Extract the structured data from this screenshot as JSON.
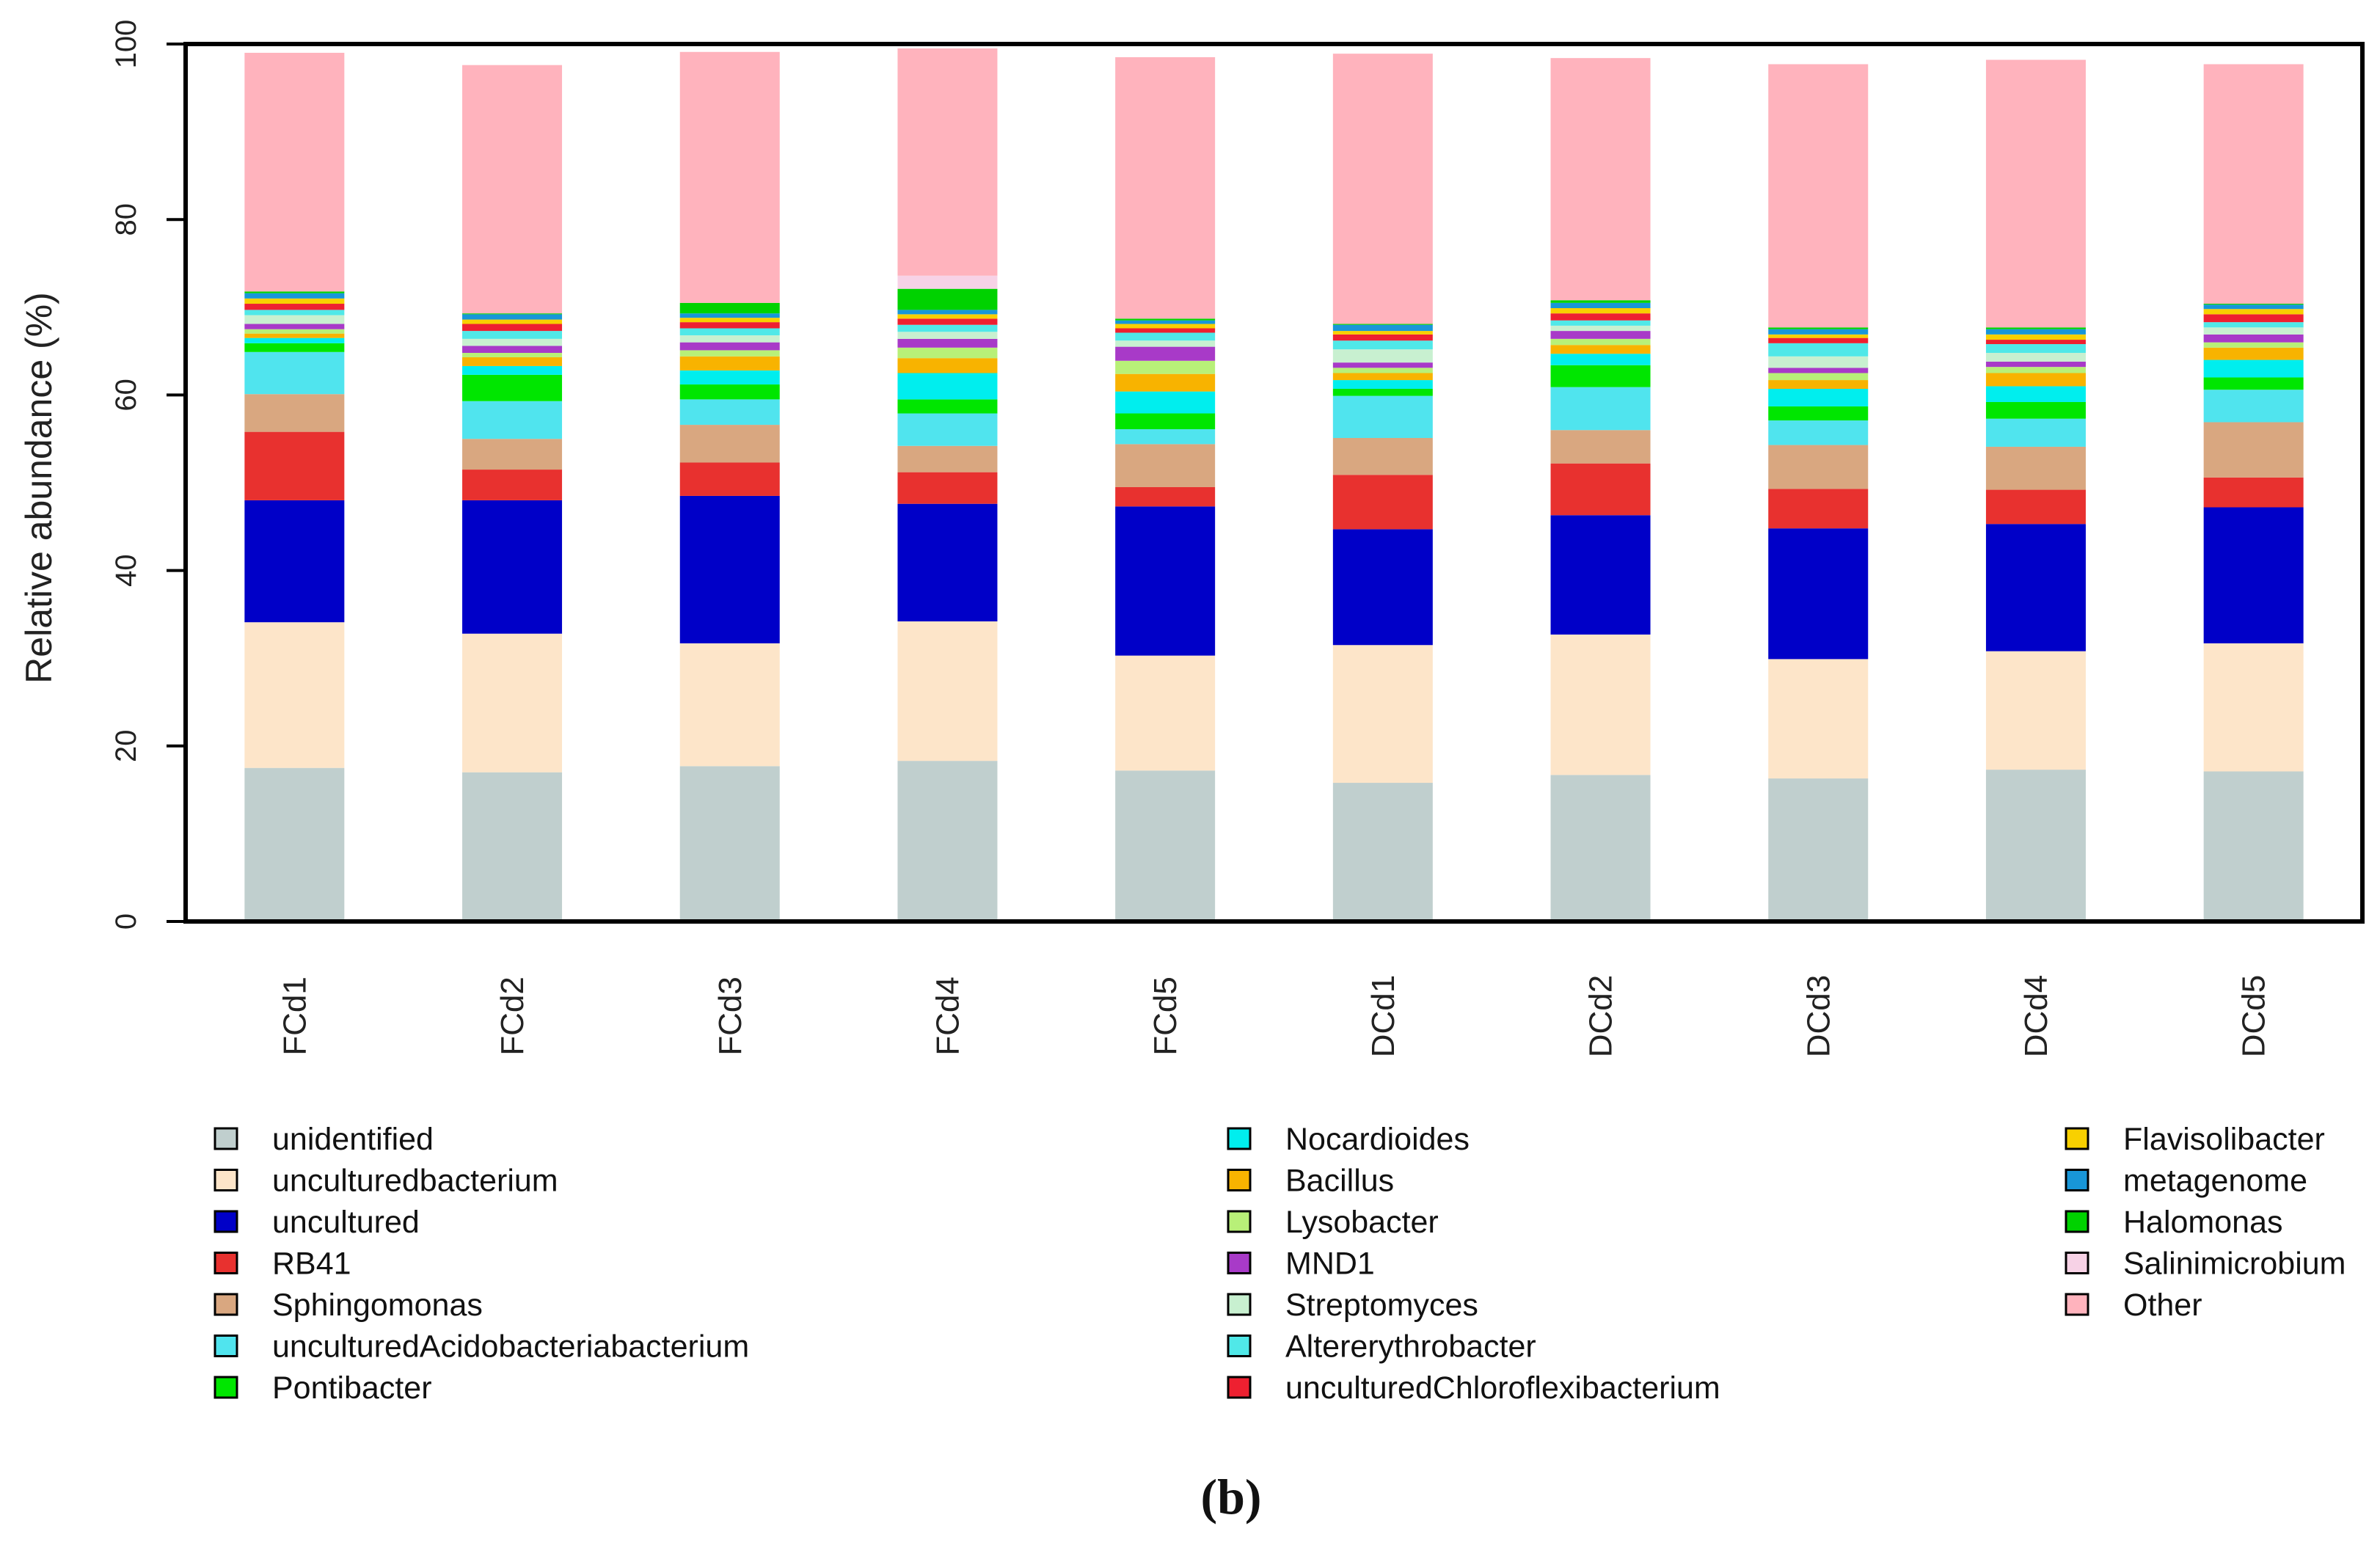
{
  "panel_label": "(b)",
  "chart_data": {
    "type": "bar",
    "stacked": true,
    "ylabel": "Relative abundance (%)",
    "xlabel": "",
    "ylim": [
      0,
      100
    ],
    "yticks": [
      0,
      20,
      40,
      60,
      80,
      100
    ],
    "grid": false,
    "legend_position": "bottom",
    "categories": [
      "FCd1",
      "FCd2",
      "FCd3",
      "FCd4",
      "FCd5",
      "DCd1",
      "DCd2",
      "DCd3",
      "DCd4",
      "DCd5"
    ],
    "series": [
      {
        "name": "unidentified",
        "color": "#c0cfce",
        "values": [
          17.5,
          17.0,
          17.7,
          18.3,
          17.2,
          15.8,
          16.7,
          16.3,
          17.3,
          17.1
        ]
      },
      {
        "name": "unculturedbacterium",
        "color": "#fde5c9",
        "values": [
          16.6,
          15.8,
          14.0,
          15.9,
          13.1,
          15.7,
          16.0,
          13.6,
          13.5,
          14.6
        ]
      },
      {
        "name": "uncultured",
        "color": "#0000c8",
        "values": [
          13.9,
          15.2,
          16.8,
          13.4,
          17.0,
          13.2,
          13.6,
          14.9,
          14.5,
          15.5
        ]
      },
      {
        "name": "RB41",
        "color": "#e8312f",
        "values": [
          7.8,
          3.5,
          3.8,
          3.6,
          2.2,
          6.2,
          5.9,
          4.5,
          3.9,
          3.4
        ]
      },
      {
        "name": "Sphingomonas",
        "color": "#d9a780",
        "values": [
          4.3,
          3.5,
          4.3,
          3.0,
          4.9,
          4.2,
          3.8,
          5.0,
          4.9,
          6.3
        ]
      },
      {
        "name": "unculturedAcidobacteriabacterium",
        "color": "#50e4ee",
        "values": [
          4.8,
          4.3,
          2.9,
          3.7,
          1.7,
          4.8,
          4.9,
          2.8,
          3.2,
          3.7
        ]
      },
      {
        "name": "Pontibacter",
        "color": "#00e600",
        "values": [
          1.0,
          3.0,
          1.7,
          1.6,
          1.8,
          0.8,
          2.5,
          1.6,
          1.9,
          1.4
        ]
      },
      {
        "name": "Nocardioides",
        "color": "#00eeee",
        "values": [
          0.6,
          1.0,
          1.6,
          3.0,
          2.5,
          1.0,
          1.3,
          2.0,
          1.8,
          2.0
        ]
      },
      {
        "name": "Bacillus",
        "color": "#f8b300",
        "values": [
          0.5,
          1.0,
          1.6,
          1.7,
          2.0,
          0.8,
          1.0,
          1.0,
          1.5,
          1.4
        ]
      },
      {
        "name": "Lysobacter",
        "color": "#b8f078",
        "values": [
          0.5,
          0.5,
          0.7,
          1.2,
          1.5,
          0.6,
          0.7,
          0.8,
          0.7,
          0.6
        ]
      },
      {
        "name": "MND1",
        "color": "#a83ac8",
        "values": [
          0.6,
          0.8,
          0.9,
          1.0,
          1.6,
          0.6,
          0.9,
          0.6,
          0.6,
          0.9
        ]
      },
      {
        "name": "Streptomyces",
        "color": "#c8f0d0",
        "values": [
          1.0,
          0.8,
          0.8,
          0.8,
          0.7,
          1.5,
          0.6,
          1.3,
          1.0,
          0.8
        ]
      },
      {
        "name": "Altererythrobacter",
        "color": "#50e8e8",
        "values": [
          0.6,
          0.9,
          0.8,
          0.8,
          0.9,
          1.0,
          0.6,
          1.5,
          1.0,
          0.6
        ]
      },
      {
        "name": "unculturedChloroflexibacterium",
        "color": "#ee2030",
        "values": [
          0.7,
          0.8,
          0.7,
          0.7,
          0.5,
          0.7,
          0.8,
          0.6,
          0.5,
          0.9
        ]
      },
      {
        "name": "Flavisolibacter",
        "color": "#f8d000",
        "values": [
          0.6,
          0.5,
          0.5,
          0.5,
          0.5,
          0.4,
          0.6,
          0.4,
          0.6,
          0.6
        ]
      },
      {
        "name": "metagenome",
        "color": "#1896d8",
        "values": [
          0.6,
          0.6,
          0.5,
          0.5,
          0.4,
          0.7,
          0.6,
          0.6,
          0.6,
          0.5
        ]
      },
      {
        "name": "Halomonas",
        "color": "#00d200",
        "values": [
          0.2,
          0.1,
          1.2,
          2.4,
          0.2,
          0.1,
          0.3,
          0.2,
          0.2,
          0.1
        ]
      },
      {
        "name": "Salinimicrobium",
        "color": "#f7d2e6",
        "values": [
          0.0,
          0.0,
          0.0,
          1.5,
          0.0,
          0.0,
          0.0,
          0.0,
          0.0,
          0.0
        ]
      },
      {
        "name": "Other",
        "color": "#ffb3bd",
        "values": [
          27.2,
          28.3,
          28.6,
          25.9,
          29.8,
          30.8,
          27.6,
          30.0,
          30.5,
          27.3
        ]
      }
    ]
  }
}
